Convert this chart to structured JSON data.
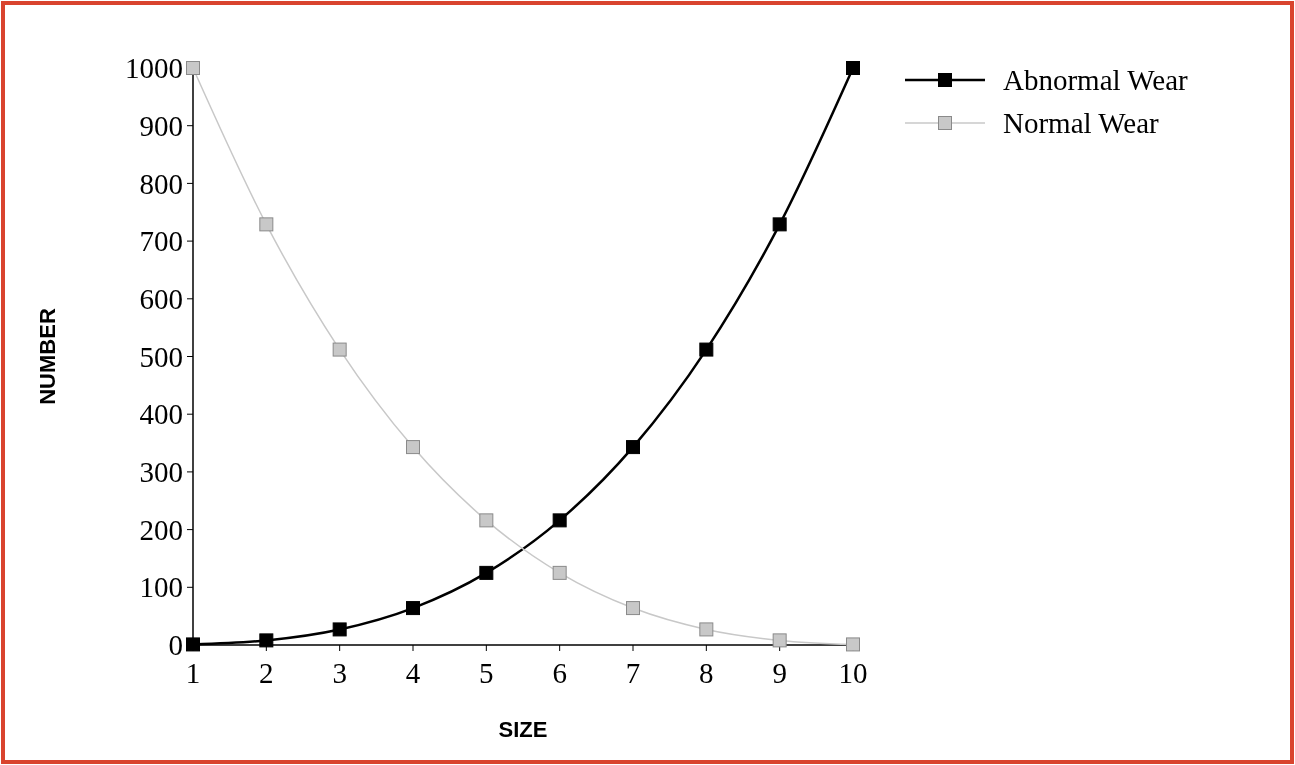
{
  "chart_data": {
    "type": "line",
    "xlabel": "SIZE",
    "ylabel": "NUMBER",
    "x": [
      1,
      2,
      3,
      4,
      5,
      6,
      7,
      8,
      9,
      10
    ],
    "series": [
      {
        "name": "Abnormal Wear",
        "color": "#000000",
        "values": [
          1,
          8,
          27,
          64,
          125,
          216,
          343,
          512,
          729,
          1000
        ]
      },
      {
        "name": "Normal Wear",
        "color": "#c8c8c8",
        "values": [
          1000,
          729,
          512,
          343,
          216,
          125,
          64,
          27,
          8,
          1
        ]
      }
    ],
    "xlim": [
      1,
      10
    ],
    "xticks": [
      1,
      2,
      3,
      4,
      5,
      6,
      7,
      8,
      9,
      10
    ],
    "ylim": [
      0,
      1000
    ],
    "yticks": [
      0,
      100,
      200,
      300,
      400,
      500,
      600,
      700,
      800,
      900,
      1000
    ],
    "marker": "square",
    "line_style": "solid",
    "grid": false,
    "legend": "top right"
  }
}
